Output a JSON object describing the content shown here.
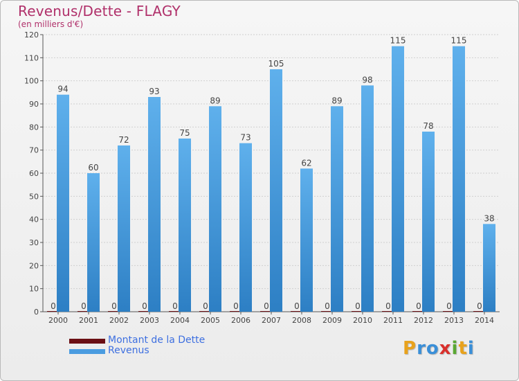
{
  "title": "Revenus/Dette - FLAGY",
  "subtitle": "(en milliers d'€)",
  "colors": {
    "dette": "#6b0f14",
    "revenus": "#4a9ce0",
    "title": "#b0306a",
    "legend_text": "#3d6fe0"
  },
  "legend": {
    "items": [
      {
        "label": "Montant de la Dette",
        "color": "#6b0f14"
      },
      {
        "label": "Revenus",
        "color": "#4a9ce0"
      }
    ]
  },
  "logo": {
    "text": "Proxiti",
    "letters": [
      {
        "ch": "P",
        "color": "#e8a21c"
      },
      {
        "ch": "r",
        "color": "#3a8fd8"
      },
      {
        "ch": "o",
        "color": "#3a8fd8"
      },
      {
        "ch": "x",
        "color": "#d9302c"
      },
      {
        "ch": "i",
        "color": "#5aa833"
      },
      {
        "ch": "t",
        "color": "#e8a21c"
      },
      {
        "ch": "i",
        "color": "#3a8fd8"
      }
    ]
  },
  "chart_data": {
    "type": "bar",
    "title": "Revenus/Dette - FLAGY",
    "ylabel": "(en milliers d'€)",
    "xlabel": "",
    "categories": [
      "2000",
      "2001",
      "2002",
      "2003",
      "2004",
      "2005",
      "2006",
      "2007",
      "2008",
      "2009",
      "2010",
      "2011",
      "2012",
      "2013",
      "2014"
    ],
    "series": [
      {
        "name": "Montant de la Dette",
        "values": [
          0,
          0,
          0,
          0,
          0,
          0,
          0,
          0,
          0,
          0,
          0,
          0,
          0,
          0,
          0
        ]
      },
      {
        "name": "Revenus",
        "values": [
          94,
          60,
          72,
          93,
          75,
          89,
          73,
          105,
          62,
          89,
          98,
          115,
          78,
          115,
          38
        ]
      }
    ],
    "ylim": [
      0,
      120
    ],
    "yticks": [
      0,
      10,
      20,
      30,
      40,
      50,
      60,
      70,
      80,
      90,
      100,
      110,
      120
    ],
    "grid": true,
    "legend_position": "bottom-left"
  }
}
